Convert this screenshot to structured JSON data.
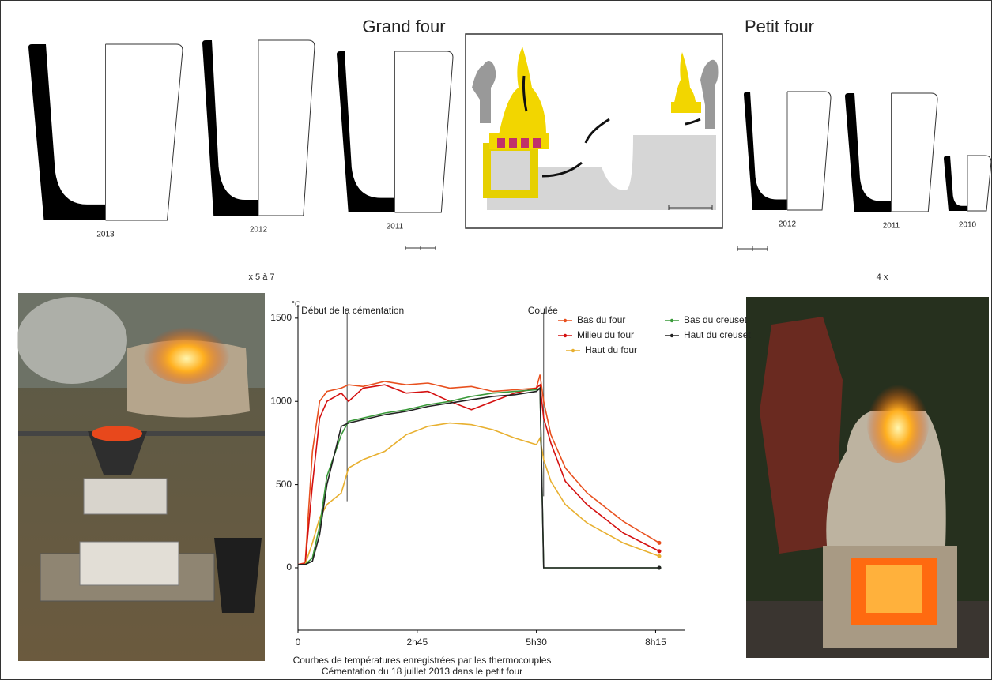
{
  "figure": {
    "titles": [
      "Grand four",
      "Petit four"
    ],
    "crucibles": {
      "grand": [
        "2013",
        "2012",
        "2011"
      ],
      "petit": [
        "2012",
        "2011",
        "2010"
      ]
    },
    "ratios": [
      "x 5 à 7",
      "4 x"
    ]
  },
  "chart_data": {
    "type": "line",
    "title": "Courbes de températures enregistrées par les thermocouples",
    "subtitle": "Cémentation du 18 juillet 2013 dans le petit four",
    "y_label": "°C",
    "annotations": [
      {
        "text": "Début de la cémentation",
        "x": 68
      },
      {
        "text": "Coulée",
        "x": 340
      }
    ],
    "x": [
      0,
      10,
      20,
      30,
      40,
      60,
      70,
      90,
      120,
      150,
      180,
      210,
      240,
      270,
      300,
      330,
      335,
      340,
      350,
      370,
      400,
      450,
      500
    ],
    "series": [
      {
        "name": "Bas du four",
        "color": "#e8501e",
        "values": [
          20,
          30,
          700,
          1000,
          1060,
          1080,
          1100,
          1090,
          1120,
          1100,
          1110,
          1080,
          1090,
          1060,
          1070,
          1080,
          1160,
          1000,
          800,
          600,
          450,
          280,
          150
        ]
      },
      {
        "name": "Milieu du four",
        "color": "#d41010",
        "values": [
          20,
          25,
          500,
          900,
          1000,
          1050,
          1000,
          1080,
          1100,
          1050,
          1060,
          1000,
          950,
          1000,
          1050,
          1080,
          1100,
          900,
          750,
          520,
          380,
          210,
          100
        ]
      },
      {
        "name": "Haut du four",
        "color": "#e8b030",
        "values": [
          20,
          20,
          150,
          300,
          380,
          450,
          600,
          650,
          700,
          800,
          850,
          870,
          860,
          830,
          780,
          740,
          780,
          650,
          520,
          380,
          270,
          150,
          70
        ]
      },
      {
        "name": "Bas du creuset",
        "color": "#3a9a3a",
        "values": [
          20,
          20,
          60,
          250,
          550,
          800,
          880,
          900,
          930,
          950,
          980,
          1000,
          1030,
          1050,
          1060,
          1070,
          1080,
          0,
          0,
          0,
          0,
          0,
          0
        ]
      },
      {
        "name": "Haut du creuset",
        "color": "#222222",
        "values": [
          20,
          20,
          40,
          200,
          500,
          850,
          870,
          890,
          920,
          940,
          970,
          990,
          1010,
          1030,
          1040,
          1060,
          1080,
          0,
          0,
          0,
          0,
          0,
          0
        ]
      }
    ],
    "xlim": [
      0,
      535
    ],
    "ylim": [
      -375,
      1580
    ],
    "xticks": [
      0,
      {
        "value": 165,
        "label": "2h45"
      },
      {
        "value": 330,
        "label": "5h30"
      },
      {
        "value": 495,
        "label": "8h15"
      }
    ],
    "yticks": [
      0,
      500,
      1000,
      1500
    ],
    "legend": "upper right"
  }
}
